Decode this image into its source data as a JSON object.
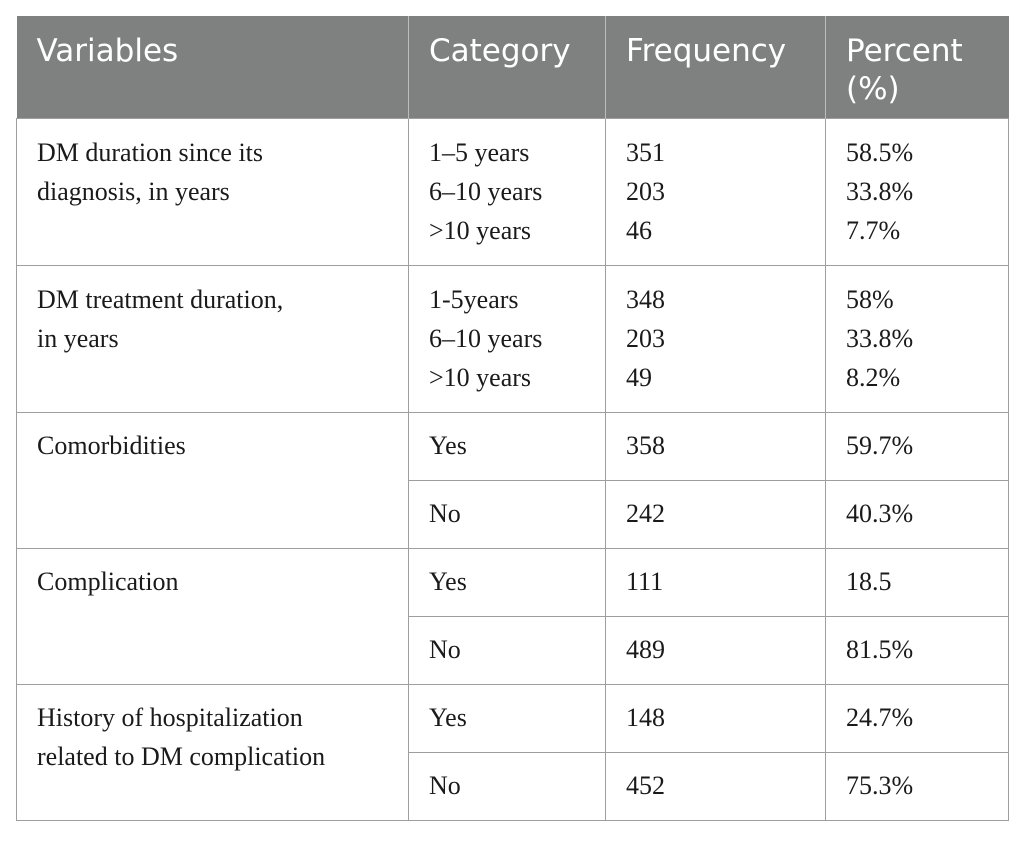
{
  "headers": [
    "Variables",
    "Category",
    "Frequency",
    "Percent (%)"
  ],
  "groups": [
    {
      "variable": [
        "DM duration since its",
        "diagnosis, in years"
      ],
      "rows": [
        {
          "category": [
            "1–5 years",
            "6–10 years",
            ">10 years"
          ],
          "frequency": [
            "351",
            "203",
            "46"
          ],
          "percent": [
            "58.5%",
            "33.8%",
            "7.7%"
          ]
        }
      ]
    },
    {
      "variable": [
        "DM treatment duration,",
        "in years"
      ],
      "rows": [
        {
          "category": [
            "1-5years",
            "6–10 years",
            ">10 years"
          ],
          "frequency": [
            "348",
            "203",
            "49"
          ],
          "percent": [
            "58%",
            "33.8%",
            "8.2%"
          ]
        }
      ]
    },
    {
      "variable": [
        "Comorbidities"
      ],
      "rows": [
        {
          "category": [
            "Yes"
          ],
          "frequency": [
            "358"
          ],
          "percent": [
            "59.7%"
          ]
        },
        {
          "category": [
            "No"
          ],
          "frequency": [
            "242"
          ],
          "percent": [
            "40.3%"
          ]
        }
      ]
    },
    {
      "variable": [
        "Complication"
      ],
      "rows": [
        {
          "category": [
            "Yes"
          ],
          "frequency": [
            "111"
          ],
          "percent": [
            "18.5"
          ]
        },
        {
          "category": [
            "No"
          ],
          "frequency": [
            "489"
          ],
          "percent": [
            "81.5%"
          ]
        }
      ]
    },
    {
      "variable": [
        "History of hospitalization",
        "related to DM complication"
      ],
      "rows": [
        {
          "category": [
            "Yes"
          ],
          "frequency": [
            "148"
          ],
          "percent": [
            "24.7%"
          ]
        },
        {
          "category": [
            "No"
          ],
          "frequency": [
            "452"
          ],
          "percent": [
            "75.3%"
          ]
        }
      ]
    }
  ]
}
